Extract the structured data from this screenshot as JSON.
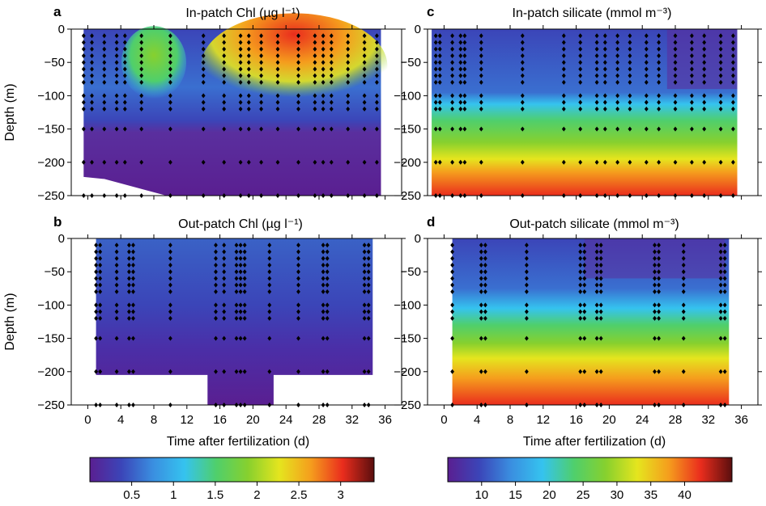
{
  "chart_data": [
    {
      "id": "a",
      "type": "heatmap",
      "panel_label": "a",
      "title": "In-patch Chl (µg l⁻¹)",
      "xlabel": "",
      "ylabel": "Depth (m)",
      "xlim": [
        -2,
        38
      ],
      "ylim": [
        -250,
        0
      ],
      "xticks": [
        0,
        4,
        8,
        12,
        16,
        20,
        24,
        28,
        32,
        36
      ],
      "yticks": [
        0,
        -50,
        -100,
        -150,
        -200,
        -250
      ],
      "colorbar": "chl",
      "sample_times": [
        -0.5,
        0.5,
        2,
        3.5,
        4.5,
        6.5,
        10,
        14,
        16.5,
        18.5,
        19.5,
        21,
        23,
        25.5,
        27.5,
        28.5,
        29.5,
        31.5,
        33.5,
        35
      ]
    },
    {
      "id": "b",
      "type": "heatmap",
      "panel_label": "b",
      "title": "Out-patch Chl (µg l⁻¹)",
      "xlabel": "Time after fertilization (d)",
      "ylabel": "Depth (m)",
      "xlim": [
        -2,
        38
      ],
      "ylim": [
        -250,
        0
      ],
      "xticks": [
        0,
        4,
        8,
        12,
        16,
        20,
        24,
        28,
        32,
        36
      ],
      "yticks": [
        0,
        -50,
        -100,
        -150,
        -200,
        -250
      ],
      "colorbar": "chl",
      "sample_times": [
        1,
        1.5,
        3.5,
        5,
        5.5,
        10,
        15.5,
        16.5,
        18,
        18.5,
        19,
        22,
        25.5,
        28.5,
        29,
        33.5,
        34
      ]
    },
    {
      "id": "c",
      "type": "heatmap",
      "panel_label": "c",
      "title": "In-patch silicate (mmol m⁻³)",
      "xlabel": "",
      "ylabel": "",
      "xlim": [
        -2,
        38
      ],
      "ylim": [
        -250,
        0
      ],
      "xticks": [
        0,
        4,
        8,
        12,
        16,
        20,
        24,
        28,
        32,
        36
      ],
      "yticks": [
        0,
        -50,
        -100,
        -150,
        -200,
        -250
      ],
      "colorbar": "si",
      "sample_times": [
        -1,
        -0.5,
        1,
        2,
        2.5,
        4.5,
        9.5,
        14.5,
        16.5,
        18.5,
        19.5,
        21,
        22.5,
        24.5,
        26,
        28,
        30,
        31.5,
        33.5,
        35
      ]
    },
    {
      "id": "d",
      "type": "heatmap",
      "panel_label": "d",
      "title": "Out-patch silicate (mmol m⁻³)",
      "xlabel": "Time after fertilization (d)",
      "ylabel": "",
      "xlim": [
        -2,
        38
      ],
      "ylim": [
        -250,
        0
      ],
      "xticks": [
        0,
        4,
        8,
        12,
        16,
        20,
        24,
        28,
        32,
        36
      ],
      "yticks": [
        0,
        -50,
        -100,
        -150,
        -200,
        -250
      ],
      "colorbar": "si",
      "sample_times": [
        1,
        4.5,
        5,
        10,
        16.5,
        17,
        18.5,
        19,
        25.5,
        26,
        29,
        33.5,
        34
      ]
    }
  ],
  "colorbars": {
    "chl": {
      "range": [
        0,
        3.4
      ],
      "ticks": [
        0.5,
        1,
        1.5,
        2,
        2.5,
        3
      ],
      "tick_labels": [
        "0.5",
        "1",
        "1.5",
        "2",
        "2.5",
        "3"
      ]
    },
    "si": {
      "range": [
        5,
        47
      ],
      "ticks": [
        10,
        15,
        20,
        25,
        30,
        35,
        40
      ],
      "tick_labels": [
        "10",
        "15",
        "20",
        "25",
        "30",
        "35",
        "40"
      ]
    }
  },
  "depth_levels": [
    -10,
    -20,
    -30,
    -40,
    -50,
    -60,
    -70,
    -80,
    -100,
    -110,
    -120,
    -150,
    -200,
    -250
  ],
  "colors": {
    "scale": [
      "#5a1f91",
      "#3b45b8",
      "#3a8ee0",
      "#35c3ef",
      "#4fcf6c",
      "#87d02e",
      "#e5e51e",
      "#f59d1d",
      "#ea2d1d",
      "#5a0e0e"
    ],
    "marker": "#000000"
  }
}
